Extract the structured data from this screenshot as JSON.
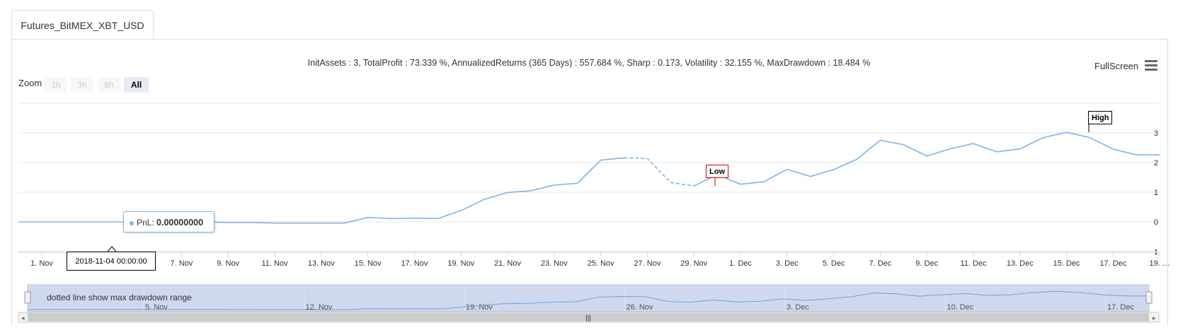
{
  "tab": {
    "label": "Futures_BitMEX_XBT_USD"
  },
  "stats": {
    "text": "InitAssets : 3, TotalProfit : 73.339 %, AnnualizedReturns (365 Days) : 557.684 %, Sharp : 0.173, Volatility : 32.155 %, MaxDrawdown : 18.484 %"
  },
  "toolbar": {
    "fullscreen_label": "FullScreen",
    "menu_icon": "hamburger-icon"
  },
  "zoom": {
    "label": "Zoom",
    "buttons": [
      "1h",
      "3h",
      "8h",
      "All"
    ],
    "active": "All"
  },
  "tooltip": {
    "series": "PnL:",
    "value": "0.00000000",
    "x_label": "2018-11-04 00:00:00"
  },
  "flags": {
    "low": "Low",
    "high": "High"
  },
  "navigator": {
    "note": "dotted line show max drawdown range",
    "labels": [
      "5. Nov",
      "12. Nov",
      "19. Nov",
      "26. Nov",
      "3. Dec",
      "10. Dec",
      "17. Dec"
    ]
  },
  "colors": {
    "line": "#7cb5ec",
    "low_flag_border": "#cc0000",
    "navigator_fill": "#cfd8ee"
  },
  "chart_data": {
    "type": "line",
    "title": "",
    "ylim": [
      -1,
      3.5
    ],
    "y_ticks": [
      "3",
      "2",
      "1",
      "0",
      "-1"
    ],
    "x_ticks": [
      "1. Nov",
      "3. Nov",
      "5. Nov",
      "7. Nov",
      "9. Nov",
      "11. Nov",
      "13. Nov",
      "15. Nov",
      "17. Nov",
      "19. Nov",
      "21. Nov",
      "23. Nov",
      "25. Nov",
      "27. Nov",
      "29. Nov",
      "1. Dec",
      "3. Dec",
      "5. Dec",
      "7. Dec",
      "9. Dec",
      "11. Dec",
      "13. Dec",
      "15. Dec",
      "17. Dec",
      "19. …"
    ],
    "series": [
      {
        "name": "PnL",
        "x_days": [
          0,
          1,
          2,
          3,
          4,
          5,
          6,
          7,
          8,
          9,
          10,
          11,
          12,
          13,
          14,
          15,
          16,
          17,
          18,
          19,
          20,
          21,
          22,
          23,
          24,
          25,
          26,
          27,
          28,
          29,
          30,
          31,
          32,
          33,
          34,
          35,
          36,
          37,
          38,
          39,
          40,
          41,
          42,
          43,
          44,
          45,
          46,
          47,
          48,
          49
        ],
        "values": [
          0,
          0,
          0,
          0,
          0,
          0,
          0,
          0,
          0,
          -0.02,
          -0.02,
          -0.04,
          -0.04,
          -0.04,
          -0.04,
          0.15,
          0.11,
          0.13,
          0.11,
          0.38,
          0.76,
          0.99,
          1.05,
          1.24,
          1.3,
          2.08,
          2.16,
          2.14,
          1.33,
          1.21,
          1.59,
          1.27,
          1.35,
          1.77,
          1.53,
          1.76,
          2.11,
          2.75,
          2.6,
          2.22,
          2.46,
          2.64,
          2.36,
          2.46,
          2.84,
          3.02,
          2.84,
          2.45,
          2.26,
          2.26
        ]
      }
    ],
    "drawdown_range_days": [
      26,
      29
    ]
  }
}
